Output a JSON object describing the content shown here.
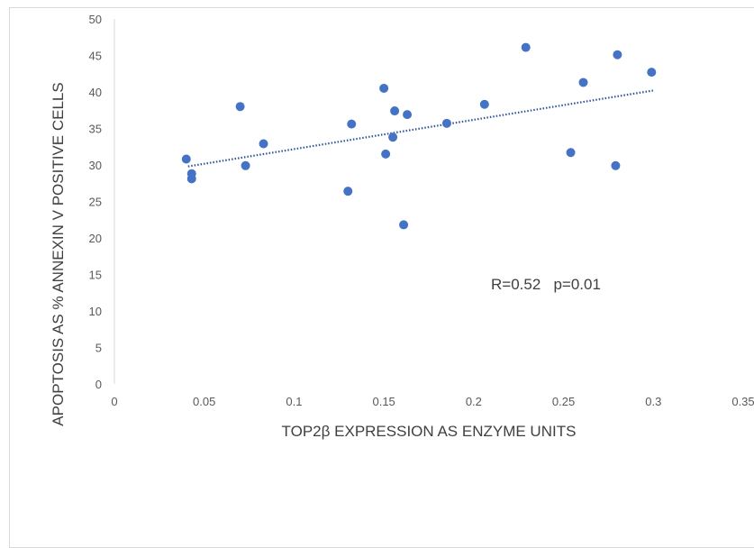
{
  "chart_data": {
    "type": "scatter",
    "xlabel": "TOP2β EXPRESSION AS ENZYME UNITS",
    "ylabel": "APOPTOSIS AS % ANNEXIN V POSITIVE CELLS",
    "xlim": [
      0,
      0.35
    ],
    "ylim": [
      0,
      50
    ],
    "x_ticks": [
      "0",
      "0.05",
      "0.1",
      "0.15",
      "0.2",
      "0.25",
      "0.3",
      "0.35"
    ],
    "y_ticks": [
      "0",
      "5",
      "10",
      "15",
      "20",
      "25",
      "30",
      "35",
      "40",
      "45",
      "50"
    ],
    "grid": false,
    "annotation": "R=0.52   p=0.01",
    "point_color": "#4472c4",
    "trendline": {
      "style": "dotted",
      "color": "#2f5597",
      "x": [
        0.041,
        0.3
      ],
      "y": [
        29.8,
        40.2
      ]
    },
    "series": [
      {
        "points": [
          {
            "x": 0.04,
            "y": 30.8
          },
          {
            "x": 0.043,
            "y": 28.8
          },
          {
            "x": 0.043,
            "y": 28.1
          },
          {
            "x": 0.07,
            "y": 38.0
          },
          {
            "x": 0.073,
            "y": 29.9
          },
          {
            "x": 0.083,
            "y": 32.9
          },
          {
            "x": 0.13,
            "y": 26.4
          },
          {
            "x": 0.132,
            "y": 35.6
          },
          {
            "x": 0.15,
            "y": 40.5
          },
          {
            "x": 0.151,
            "y": 31.5
          },
          {
            "x": 0.155,
            "y": 33.8
          },
          {
            "x": 0.156,
            "y": 37.4
          },
          {
            "x": 0.161,
            "y": 21.8
          },
          {
            "x": 0.163,
            "y": 36.9
          },
          {
            "x": 0.185,
            "y": 35.7
          },
          {
            "x": 0.206,
            "y": 38.3
          },
          {
            "x": 0.229,
            "y": 46.1
          },
          {
            "x": 0.254,
            "y": 31.7
          },
          {
            "x": 0.261,
            "y": 41.3
          },
          {
            "x": 0.279,
            "y": 29.9
          },
          {
            "x": 0.28,
            "y": 45.1
          },
          {
            "x": 0.299,
            "y": 42.7
          }
        ]
      }
    ]
  }
}
